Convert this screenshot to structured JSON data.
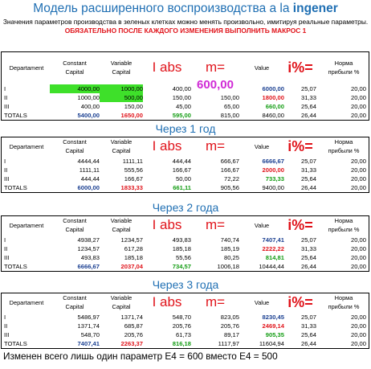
{
  "header": {
    "title": "Модель расширенного воспроизводства a la ",
    "author": "ingener",
    "description_plain": "Значения параметров производства в зеленых клетках можно менять произвольно, имитируя реальные параметры. ",
    "description_warn": "ОБЯЗАТЕЛЬНО ПОСЛЕ КАЖДОГО ИЗМЕНЕНИЯ ВЫПОЛНИТЬ МАКРОС 1"
  },
  "columns": {
    "department": "Departament",
    "constant_1": "Constant",
    "constant_2": "Capital",
    "variable_1": "Variable",
    "variable_2": "Capital",
    "i_abs": "I abs",
    "m": "m=",
    "value": "Value",
    "i_pct": "i%=",
    "norm_1": "Норма",
    "norm_2": "прибыли %"
  },
  "tables": [
    {
      "section_title": "",
      "rows": [
        {
          "label": "I",
          "constant": "4000,00",
          "variable": "1000,00",
          "i_abs": "400,00",
          "m": "600,00",
          "value": "6000,00",
          "pct": "25,07",
          "norm": "20,00"
        },
        {
          "label": "II",
          "constant": "1000,00",
          "variable": "500,00",
          "i_abs": "150,00",
          "m": "150,00",
          "value": "1800,00",
          "pct": "31,33",
          "norm": "20,00"
        },
        {
          "label": "III",
          "constant": "400,00",
          "variable": "150,00",
          "i_abs": "45,00",
          "m": "65,00",
          "value": "660,00",
          "pct": "25,64",
          "norm": "20,00"
        },
        {
          "label": "TOTALS",
          "constant": "5400,00",
          "variable": "1650,00",
          "i_abs": "595,00",
          "m": "815,00",
          "value": "8460,00",
          "pct": "26,44",
          "norm": "20,00"
        }
      ]
    },
    {
      "section_title": "Через 1 год",
      "rows": [
        {
          "label": "I",
          "constant": "4444,44",
          "variable": "1111,11",
          "i_abs": "444,44",
          "m": "666,67",
          "value": "6666,67",
          "pct": "25,07",
          "norm": "20,00"
        },
        {
          "label": "II",
          "constant": "1111,11",
          "variable": "555,56",
          "i_abs": "166,67",
          "m": "166,67",
          "value": "2000,00",
          "pct": "31,33",
          "norm": "20,00"
        },
        {
          "label": "III",
          "constant": "444,44",
          "variable": "166,67",
          "i_abs": "50,00",
          "m": "72,22",
          "value": "733,33",
          "pct": "25,64",
          "norm": "20,00"
        },
        {
          "label": "TOTALS",
          "constant": "6000,00",
          "variable": "1833,33",
          "i_abs": "661,11",
          "m": "905,56",
          "value": "9400,00",
          "pct": "26,44",
          "norm": "20,00"
        }
      ]
    },
    {
      "section_title": "Через 2 года",
      "rows": [
        {
          "label": "I",
          "constant": "4938,27",
          "variable": "1234,57",
          "i_abs": "493,83",
          "m": "740,74",
          "value": "7407,41",
          "pct": "25,07",
          "norm": "20,00"
        },
        {
          "label": "II",
          "constant": "1234,57",
          "variable": "617,28",
          "i_abs": "185,18",
          "m": "185,19",
          "value": "2222,22",
          "pct": "31,33",
          "norm": "20,00"
        },
        {
          "label": "III",
          "constant": "493,83",
          "variable": "185,18",
          "i_abs": "55,56",
          "m": "80,25",
          "value": "814,81",
          "pct": "25,64",
          "norm": "20,00"
        },
        {
          "label": "TOTALS",
          "constant": "6666,67",
          "variable": "2037,04",
          "i_abs": "734,57",
          "m": "1006,18",
          "value": "10444,44",
          "pct": "26,44",
          "norm": "20,00"
        }
      ]
    },
    {
      "section_title": "Через 3 года",
      "rows": [
        {
          "label": "I",
          "constant": "5486,97",
          "variable": "1371,74",
          "i_abs": "548,70",
          "m": "823,05",
          "value": "8230,45",
          "pct": "25,07",
          "norm": "20,00"
        },
        {
          "label": "II",
          "constant": "1371,74",
          "variable": "685,87",
          "i_abs": "205,76",
          "m": "205,76",
          "value": "2469,14",
          "pct": "31,33",
          "norm": "20,00"
        },
        {
          "label": "III",
          "constant": "548,70",
          "variable": "205,76",
          "i_abs": "61,73",
          "m": "89,17",
          "value": "905,35",
          "pct": "25,64",
          "norm": "20,00"
        },
        {
          "label": "TOTALS",
          "constant": "7407,41",
          "variable": "2263,37",
          "i_abs": "816,18",
          "m": "1117,97",
          "value": "11604,94",
          "pct": "26,44",
          "norm": "20,00"
        }
      ]
    }
  ],
  "footer": {
    "note": "Изменен всего лишь один параметр E4 = 600 вместо E4 = 500"
  },
  "colors": {
    "title_blue": "#1f6fb3",
    "warn_red": "#e0131a",
    "input_green": "#3ee02a",
    "value_blue": "#1a3f91",
    "value_red": "#e0131a",
    "value_green": "#149d14",
    "m_magenta": "#d02bd6"
  }
}
